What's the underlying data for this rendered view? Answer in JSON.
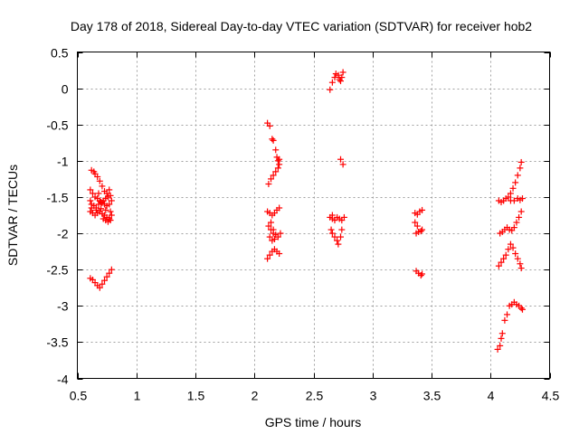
{
  "chart_data": {
    "type": "scatter",
    "title": "Day 178 of 2018, Sidereal Day-to-day VTEC variation (SDTVAR) for receiver hob2",
    "xlabel": "GPS time / hours",
    "ylabel": "SDTVAR / TECUs",
    "xlim": [
      0.5,
      4.5
    ],
    "ylim": [
      -4,
      0.5
    ],
    "grid": true,
    "x_ticks": [
      0.5,
      1,
      1.5,
      2,
      2.5,
      3,
      3.5,
      4,
      4.5
    ],
    "x_tick_labels": [
      "0.5",
      "1",
      "1.5",
      "2",
      "2.5",
      "3",
      "3.5",
      "4",
      "4.5"
    ],
    "y_ticks": [
      0.5,
      0,
      -0.5,
      -1,
      -1.5,
      -2,
      -2.5,
      -3,
      -3.5,
      -4
    ],
    "y_tick_labels": [
      "0.5",
      "0",
      "-0.5",
      "-1",
      "-1.5",
      "-2",
      "-2.5",
      "-3",
      "-3.5",
      "-4"
    ],
    "marker": "+",
    "marker_color": "#ff0000",
    "series": [
      {
        "name": "SDTVAR",
        "points": [
          [
            0.62,
            -1.13
          ],
          [
            0.64,
            -1.15
          ],
          [
            0.65,
            -1.18
          ],
          [
            0.67,
            -1.22
          ],
          [
            0.69,
            -1.28
          ],
          [
            0.71,
            -1.35
          ],
          [
            0.73,
            -1.42
          ],
          [
            0.75,
            -1.45
          ],
          [
            0.77,
            -1.4
          ],
          [
            0.61,
            -1.4
          ],
          [
            0.63,
            -1.45
          ],
          [
            0.65,
            -1.5
          ],
          [
            0.67,
            -1.52
          ],
          [
            0.69,
            -1.55
          ],
          [
            0.71,
            -1.58
          ],
          [
            0.73,
            -1.6
          ],
          [
            0.75,
            -1.62
          ],
          [
            0.77,
            -1.6
          ],
          [
            0.79,
            -1.55
          ],
          [
            0.61,
            -1.55
          ],
          [
            0.62,
            -1.6
          ],
          [
            0.64,
            -1.62
          ],
          [
            0.66,
            -1.65
          ],
          [
            0.68,
            -1.6
          ],
          [
            0.7,
            -1.57
          ],
          [
            0.72,
            -1.55
          ],
          [
            0.74,
            -1.52
          ],
          [
            0.76,
            -1.5
          ],
          [
            0.78,
            -1.48
          ],
          [
            0.61,
            -1.7
          ],
          [
            0.63,
            -1.72
          ],
          [
            0.65,
            -1.75
          ],
          [
            0.67,
            -1.72
          ],
          [
            0.69,
            -1.7
          ],
          [
            0.71,
            -1.73
          ],
          [
            0.73,
            -1.75
          ],
          [
            0.75,
            -1.78
          ],
          [
            0.77,
            -1.8
          ],
          [
            0.79,
            -1.75
          ],
          [
            0.62,
            -1.65
          ],
          [
            0.66,
            -1.68
          ],
          [
            0.7,
            -1.66
          ],
          [
            0.74,
            -1.68
          ],
          [
            0.78,
            -1.7
          ],
          [
            0.72,
            -1.8
          ],
          [
            0.74,
            -1.82
          ],
          [
            0.76,
            -1.84
          ],
          [
            0.78,
            -1.82
          ],
          [
            0.68,
            -1.45
          ],
          [
            0.61,
            -2.62
          ],
          [
            0.63,
            -2.64
          ],
          [
            0.65,
            -2.68
          ],
          [
            0.67,
            -2.72
          ],
          [
            0.69,
            -2.75
          ],
          [
            0.71,
            -2.7
          ],
          [
            0.73,
            -2.65
          ],
          [
            0.75,
            -2.6
          ],
          [
            0.77,
            -2.55
          ],
          [
            0.79,
            -2.5
          ],
          [
            2.11,
            -0.48
          ],
          [
            2.13,
            -0.52
          ],
          [
            2.15,
            -0.7
          ],
          [
            2.16,
            -0.72
          ],
          [
            2.18,
            -0.85
          ],
          [
            2.19,
            -0.95
          ],
          [
            2.2,
            -1.0
          ],
          [
            2.21,
            -1.05
          ],
          [
            2.2,
            -1.1
          ],
          [
            2.18,
            -1.15
          ],
          [
            2.16,
            -1.2
          ],
          [
            2.14,
            -1.25
          ],
          [
            2.12,
            -1.32
          ],
          [
            2.21,
            -0.98
          ],
          [
            2.11,
            -1.7
          ],
          [
            2.13,
            -1.72
          ],
          [
            2.15,
            -1.75
          ],
          [
            2.17,
            -1.72
          ],
          [
            2.19,
            -1.68
          ],
          [
            2.21,
            -1.65
          ],
          [
            2.12,
            -1.9
          ],
          [
            2.14,
            -1.95
          ],
          [
            2.16,
            -2.0
          ],
          [
            2.18,
            -2.02
          ],
          [
            2.2,
            -2.05
          ],
          [
            2.22,
            -2.0
          ],
          [
            2.13,
            -2.05
          ],
          [
            2.15,
            -2.1
          ],
          [
            2.17,
            -2.08
          ],
          [
            2.11,
            -2.35
          ],
          [
            2.13,
            -2.3
          ],
          [
            2.15,
            -2.25
          ],
          [
            2.17,
            -2.22
          ],
          [
            2.19,
            -2.25
          ],
          [
            2.21,
            -2.28
          ],
          [
            2.14,
            -1.85
          ],
          [
            2.16,
            -1.95
          ],
          [
            2.64,
            -0.02
          ],
          [
            2.66,
            0.08
          ],
          [
            2.68,
            0.15
          ],
          [
            2.69,
            0.2
          ],
          [
            2.71,
            0.18
          ],
          [
            2.72,
            0.12
          ],
          [
            2.73,
            0.1
          ],
          [
            2.74,
            0.15
          ],
          [
            2.75,
            0.22
          ],
          [
            2.73,
            -0.98
          ],
          [
            2.75,
            -1.05
          ],
          [
            2.64,
            -1.78
          ],
          [
            2.66,
            -1.8
          ],
          [
            2.68,
            -1.82
          ],
          [
            2.7,
            -1.78
          ],
          [
            2.72,
            -1.8
          ],
          [
            2.74,
            -1.82
          ],
          [
            2.76,
            -1.78
          ],
          [
            2.65,
            -1.95
          ],
          [
            2.66,
            -2.0
          ],
          [
            2.68,
            -2.05
          ],
          [
            2.7,
            -2.1
          ],
          [
            2.71,
            -2.15
          ],
          [
            2.73,
            -2.05
          ],
          [
            2.74,
            -1.95
          ],
          [
            2.66,
            -1.75
          ],
          [
            3.36,
            -1.72
          ],
          [
            3.38,
            -1.74
          ],
          [
            3.4,
            -1.7
          ],
          [
            3.42,
            -1.68
          ],
          [
            3.36,
            -1.85
          ],
          [
            3.38,
            -1.9
          ],
          [
            3.37,
            -2.0
          ],
          [
            3.39,
            -1.98
          ],
          [
            3.41,
            -1.97
          ],
          [
            3.42,
            -1.95
          ],
          [
            3.37,
            -2.52
          ],
          [
            3.39,
            -2.55
          ],
          [
            3.41,
            -2.58
          ],
          [
            3.42,
            -2.56
          ],
          [
            4.07,
            -1.55
          ],
          [
            4.09,
            -1.57
          ],
          [
            4.11,
            -1.55
          ],
          [
            4.13,
            -1.52
          ],
          [
            4.15,
            -1.5
          ],
          [
            4.17,
            -1.45
          ],
          [
            4.19,
            -1.38
          ],
          [
            4.21,
            -1.3
          ],
          [
            4.23,
            -1.2
          ],
          [
            4.25,
            -1.1
          ],
          [
            4.26,
            -1.02
          ],
          [
            4.23,
            -1.52
          ],
          [
            4.25,
            -1.54
          ],
          [
            4.27,
            -1.52
          ],
          [
            4.17,
            -1.55
          ],
          [
            4.2,
            -1.55
          ],
          [
            4.08,
            -2.0
          ],
          [
            4.1,
            -1.98
          ],
          [
            4.12,
            -1.95
          ],
          [
            4.14,
            -1.92
          ],
          [
            4.16,
            -1.95
          ],
          [
            4.18,
            -1.96
          ],
          [
            4.2,
            -1.92
          ],
          [
            4.22,
            -1.85
          ],
          [
            4.24,
            -1.78
          ],
          [
            4.26,
            -1.7
          ],
          [
            4.07,
            -2.45
          ],
          [
            4.09,
            -2.4
          ],
          [
            4.11,
            -2.35
          ],
          [
            4.13,
            -2.3
          ],
          [
            4.15,
            -2.22
          ],
          [
            4.17,
            -2.15
          ],
          [
            4.19,
            -2.2
          ],
          [
            4.21,
            -2.28
          ],
          [
            4.23,
            -2.35
          ],
          [
            4.25,
            -2.42
          ],
          [
            4.26,
            -2.48
          ],
          [
            4.06,
            -3.6
          ],
          [
            4.08,
            -3.55
          ],
          [
            4.09,
            -3.45
          ],
          [
            4.1,
            -3.38
          ],
          [
            4.12,
            -3.2
          ],
          [
            4.14,
            -3.12
          ],
          [
            4.16,
            -3.0
          ],
          [
            4.18,
            -2.98
          ],
          [
            4.2,
            -2.95
          ],
          [
            4.22,
            -2.98
          ],
          [
            4.24,
            -3.0
          ],
          [
            4.26,
            -3.03
          ],
          [
            4.27,
            -3.05
          ]
        ]
      }
    ]
  }
}
